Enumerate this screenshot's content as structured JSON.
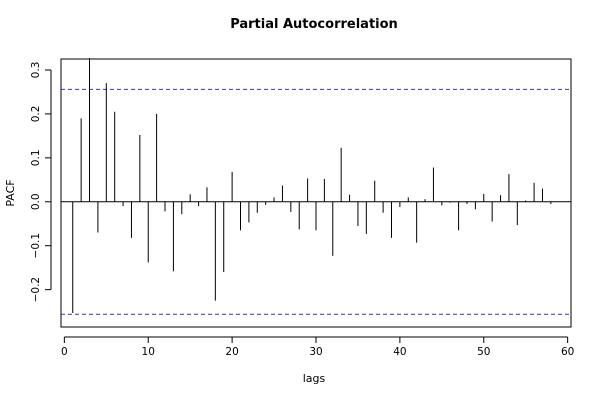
{
  "chart_data": {
    "type": "bar",
    "title": "Partial Autocorrelation",
    "xlabel": "lags",
    "ylabel": "PACF",
    "xlim": [
      -0.4,
      60.4
    ],
    "ylim": [
      -0.285,
      0.325
    ],
    "x_ticks": [
      0,
      10,
      20,
      30,
      40,
      50,
      60
    ],
    "y_ticks": [
      -0.2,
      -0.1,
      0.0,
      0.1,
      0.2,
      0.3
    ],
    "y_tick_labels": [
      "−0.2",
      "−0.1",
      "0.0",
      "0.1",
      "0.2",
      "0.3"
    ],
    "confidence_bound": 0.256,
    "grid": false,
    "lags": [
      1,
      2,
      3,
      4,
      5,
      6,
      7,
      8,
      9,
      10,
      11,
      12,
      13,
      14,
      15,
      16,
      17,
      18,
      19,
      20,
      21,
      22,
      23,
      24,
      25,
      26,
      27,
      28,
      29,
      30,
      31,
      32,
      33,
      34,
      35,
      36,
      37,
      38,
      39,
      40,
      41,
      42,
      43,
      44,
      45,
      46,
      47,
      48,
      49,
      50,
      51,
      52,
      53,
      54,
      55,
      56,
      57,
      58
    ],
    "values": [
      -0.253,
      0.19,
      0.327,
      -0.07,
      0.27,
      0.205,
      -0.01,
      -0.082,
      0.152,
      -0.138,
      0.2,
      -0.022,
      -0.158,
      -0.028,
      0.017,
      -0.01,
      0.033,
      -0.225,
      -0.16,
      0.068,
      -0.065,
      -0.047,
      -0.025,
      -0.007,
      0.01,
      0.037,
      -0.023,
      -0.063,
      0.053,
      -0.065,
      0.052,
      -0.123,
      0.123,
      0.016,
      -0.055,
      -0.073,
      0.048,
      -0.025,
      -0.082,
      -0.012,
      0.01,
      -0.093,
      0.006,
      0.078,
      -0.008,
      -0.002,
      -0.065,
      -0.005,
      -0.017,
      0.018,
      -0.045,
      0.015,
      0.063,
      -0.053,
      0.003,
      0.043,
      0.03,
      -0.005
    ],
    "colors": {
      "bars": "#000000",
      "bounds": "#3333cc",
      "axes": "#000000"
    }
  }
}
